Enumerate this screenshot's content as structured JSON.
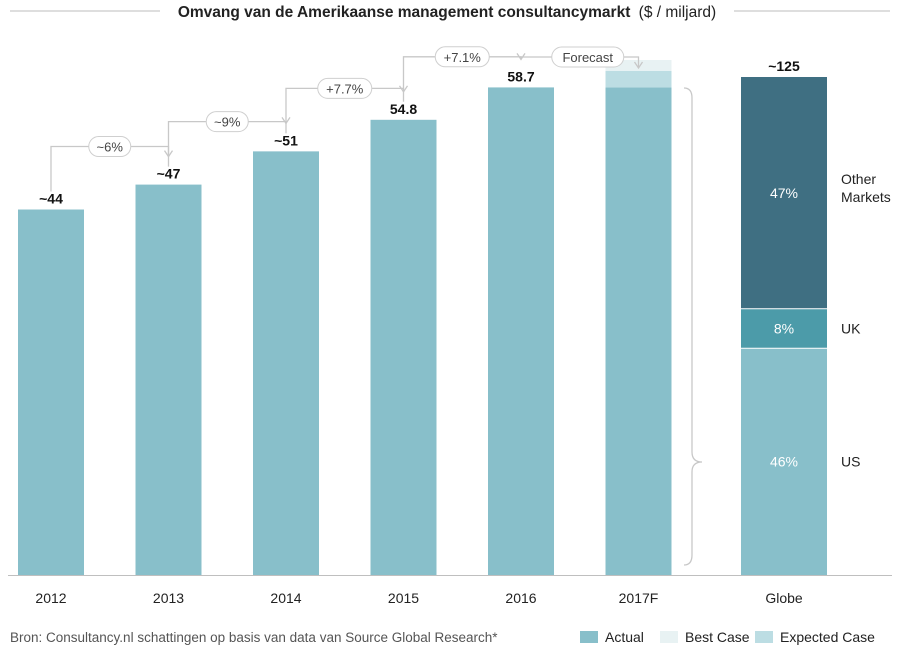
{
  "chart_data": {
    "type": "bar",
    "title_bold": "Omvang van de Amerikaanse management consultancymarkt",
    "title_unit": "($ / miljard)",
    "categories": [
      "2012",
      "2013",
      "2014",
      "2015",
      "2016",
      "2017F"
    ],
    "series": [
      {
        "name": "Actual",
        "values": [
          44,
          47,
          51,
          54.8,
          58.7,
          58.7
        ]
      },
      {
        "name": "Expected Case",
        "values": [
          0,
          0,
          0,
          0,
          0,
          2
        ]
      },
      {
        "name": "Best Case",
        "values": [
          0,
          0,
          0,
          0,
          0,
          1.3
        ]
      }
    ],
    "value_labels": [
      "~44",
      "~47",
      "~51",
      "54.8",
      "58.7"
    ],
    "growth_labels": [
      "~6%",
      "~9%",
      "+7.7%",
      "+7.1%"
    ],
    "forecast_label": "Forecast",
    "ylim": [
      0,
      62
    ],
    "globe": {
      "category": "Globe",
      "total_label": "~125",
      "segments": [
        {
          "name": "US",
          "label": "US",
          "percent": 46,
          "value_label": "46%",
          "color": "#88bfca"
        },
        {
          "name": "UK",
          "label": "UK",
          "percent": 8,
          "value_label": "8%",
          "color": "#4c9ba9"
        },
        {
          "name": "Other Markets",
          "label_lines": [
            "Other",
            "Markets"
          ],
          "percent": 47,
          "value_label": "47%",
          "color": "#3f6f82"
        }
      ]
    },
    "legend": [
      {
        "name": "Actual",
        "color": "#88bfca"
      },
      {
        "name": "Best Case",
        "color": "#e8f2f3"
      },
      {
        "name": "Expected Case",
        "color": "#bcdde3"
      }
    ],
    "source": "Bron: Consultancy.nl schattingen op basis van data van Source Global Research*",
    "colors": {
      "actual": "#88bfca",
      "expected": "#bcdde3",
      "best": "#e8f2f3",
      "arrow": "#c8c8c8",
      "text": "#222222",
      "source_text": "#555555"
    }
  }
}
